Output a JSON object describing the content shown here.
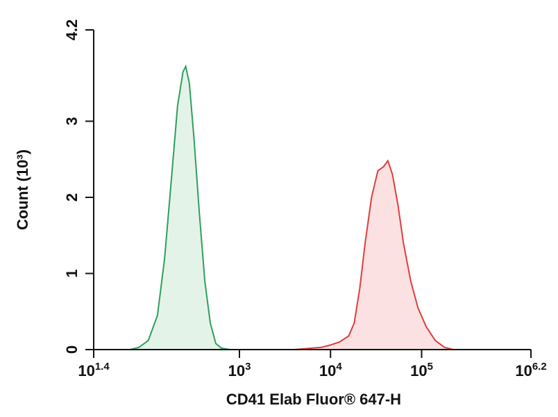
{
  "chart_data": {
    "type": "histogram-overlay",
    "xlabel": "CD41 Elab Fluor® 647-H",
    "ylabel": "Count (10³)",
    "xscale": "log",
    "xlim": [
      25.1189,
      1584893
    ],
    "xticks": [
      {
        "value": 25.1189,
        "label": "10",
        "power": "1.4"
      },
      {
        "value": 1000,
        "label": "10",
        "power": "3"
      },
      {
        "value": 10000,
        "label": "10",
        "power": "4"
      },
      {
        "value": 100000,
        "label": "10",
        "power": "5"
      },
      {
        "value": 1584893,
        "label": "10",
        "power": "6.2"
      }
    ],
    "ylim": [
      0,
      4.2
    ],
    "yticks": [
      0,
      1,
      2,
      3,
      4.2
    ],
    "series": [
      {
        "color": "#2e9e5e",
        "fill": "#e4f3e8",
        "x": [
          63,
          79,
          100,
          126,
          151,
          178,
          209,
          240,
          257,
          282,
          316,
          363,
          417,
          479,
          550,
          631,
          794
        ],
        "values": [
          0,
          0.03,
          0.12,
          0.45,
          1.2,
          2.2,
          3.2,
          3.65,
          3.72,
          3.5,
          2.8,
          1.8,
          0.9,
          0.35,
          0.08,
          0.02,
          0
        ]
      },
      {
        "color": "#e03c3c",
        "fill": "#fbe1e1",
        "x": [
          3981,
          7943,
          10000,
          12589,
          15849,
          18197,
          20893,
          23988,
          28184,
          33113,
          38019,
          42658,
          47863,
          54954,
          63096,
          75858,
          91201,
          112202,
          141254,
          177828,
          223872
        ],
        "values": [
          0,
          0.03,
          0.06,
          0.1,
          0.18,
          0.35,
          0.8,
          1.4,
          2.0,
          2.35,
          2.4,
          2.48,
          2.3,
          1.9,
          1.4,
          0.9,
          0.55,
          0.3,
          0.12,
          0.03,
          0
        ]
      }
    ]
  }
}
